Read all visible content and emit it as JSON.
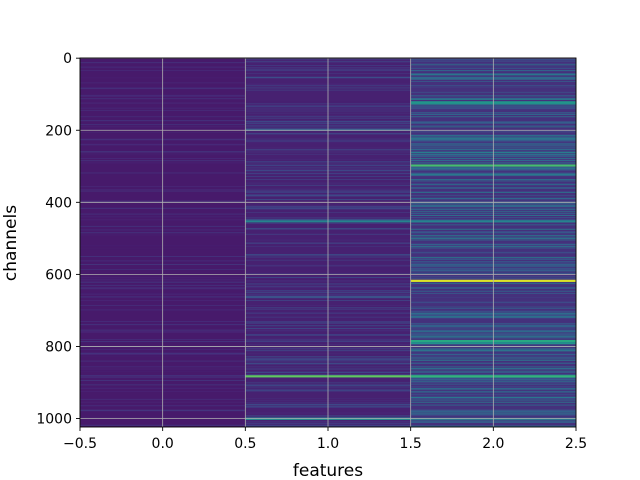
{
  "chart_data": {
    "type": "heatmap",
    "colormap": "viridis",
    "xlabel": "features",
    "ylabel": "channels",
    "x_columns": [
      0,
      1,
      2
    ],
    "xlim": [
      -0.5,
      2.5
    ],
    "ylim": [
      1023.5,
      -0.5
    ],
    "n_rows": 1024,
    "x_ticks": [
      -0.5,
      0.0,
      0.5,
      1.0,
      1.5,
      2.0,
      2.5
    ],
    "x_tick_labels": [
      "−0.5",
      "0.0",
      "0.5",
      "1.0",
      "1.5",
      "2.0",
      "2.5"
    ],
    "y_ticks": [
      0,
      200,
      400,
      600,
      800,
      1000
    ],
    "y_tick_labels": [
      "0",
      "200",
      "400",
      "600",
      "800",
      "1000"
    ],
    "grid": true,
    "column_background": [
      0.07,
      0.09,
      0.14
    ],
    "highlights": [
      {
        "column": 1,
        "row": 198,
        "value": 0.3
      },
      {
        "column": 1,
        "row": 452,
        "value": 0.45
      },
      {
        "column": 1,
        "row": 662,
        "value": 0.25
      },
      {
        "column": 1,
        "row": 882,
        "value": 0.75
      },
      {
        "column": 1,
        "row": 1000,
        "value": 0.5
      },
      {
        "column": 2,
        "row": 122,
        "value": 0.55
      },
      {
        "column": 2,
        "row": 125,
        "value": 0.5
      },
      {
        "column": 2,
        "row": 297,
        "value": 0.7
      },
      {
        "column": 2,
        "row": 322,
        "value": 0.4
      },
      {
        "column": 2,
        "row": 452,
        "value": 0.45
      },
      {
        "column": 2,
        "row": 617,
        "value": 0.95
      },
      {
        "column": 2,
        "row": 708,
        "value": 0.35
      },
      {
        "column": 2,
        "row": 784,
        "value": 0.6
      },
      {
        "column": 2,
        "row": 790,
        "value": 0.5
      },
      {
        "column": 2,
        "row": 882,
        "value": 0.65
      },
      {
        "column": 2,
        "row": 1000,
        "value": 0.4
      }
    ]
  }
}
